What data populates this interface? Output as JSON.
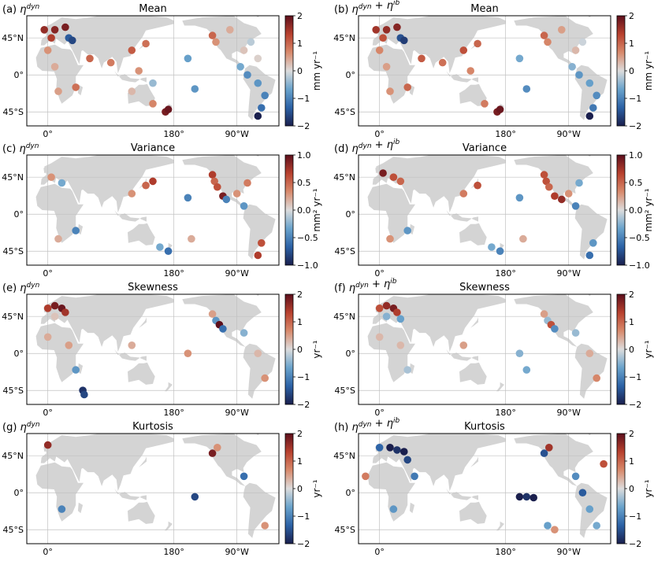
{
  "figure": {
    "lat_ticks": [
      "45°N",
      "0°",
      "45°S"
    ],
    "lon_ticks": [
      "180°",
      "90°W",
      "0°"
    ]
  },
  "colors": {
    "land": "#d4d4d4",
    "grid": "#c0c0c0",
    "colormap": [
      "#1a1f4d",
      "#2c62a6",
      "#6aa3cc",
      "#dcdcdc",
      "#d88a6c",
      "#b8412e",
      "#5c0f1c"
    ]
  },
  "chart_data": [
    {
      "type": "scatter",
      "id": "a",
      "label": "(a)",
      "label_math": "η^dyn",
      "title": "Mean",
      "cbar_label": "mm yr⁻¹",
      "cbar_ticks": [
        "2",
        "1",
        "0",
        "−1",
        "−2"
      ],
      "vmin": -2,
      "vmax": 2,
      "points": [
        {
          "lon": -125,
          "lat": 48,
          "v": 1.0
        },
        {
          "lon": -120,
          "lat": 40,
          "v": 0.6
        },
        {
          "lon": -100,
          "lat": 55,
          "v": 0.4
        },
        {
          "lon": -80,
          "lat": 30,
          "v": 0.2
        },
        {
          "lon": -70,
          "lat": 40,
          "v": -0.2
        },
        {
          "lon": -60,
          "lat": 20,
          "v": 0.1
        },
        {
          "lon": -85,
          "lat": 10,
          "v": -0.6
        },
        {
          "lon": -75,
          "lat": 0,
          "v": -0.9
        },
        {
          "lon": -60,
          "lat": -10,
          "v": -0.8
        },
        {
          "lon": -50,
          "lat": -25,
          "v": -1.0
        },
        {
          "lon": -55,
          "lat": -40,
          "v": -1.2
        },
        {
          "lon": -60,
          "lat": -50,
          "v": -2.0
        },
        {
          "lon": -5,
          "lat": 55,
          "v": 1.6
        },
        {
          "lon": 10,
          "lat": 55,
          "v": 1.7
        },
        {
          "lon": 25,
          "lat": 58,
          "v": 1.8
        },
        {
          "lon": 5,
          "lat": 45,
          "v": 1.4
        },
        {
          "lon": 30,
          "lat": 45,
          "v": -1.4
        },
        {
          "lon": 35,
          "lat": 42,
          "v": -1.6
        },
        {
          "lon": 0,
          "lat": 30,
          "v": 0.6
        },
        {
          "lon": 10,
          "lat": 10,
          "v": 0.4
        },
        {
          "lon": 15,
          "lat": -20,
          "v": 0.5
        },
        {
          "lon": 40,
          "lat": -15,
          "v": 0.9
        },
        {
          "lon": 60,
          "lat": 20,
          "v": 1.0
        },
        {
          "lon": 90,
          "lat": 15,
          "v": 0.8
        },
        {
          "lon": 120,
          "lat": 30,
          "v": 1.1
        },
        {
          "lon": 140,
          "lat": 38,
          "v": 0.9
        },
        {
          "lon": 130,
          "lat": 5,
          "v": 0.6
        },
        {
          "lon": 120,
          "lat": -20,
          "v": 0.3
        },
        {
          "lon": 150,
          "lat": -35,
          "v": 0.7
        },
        {
          "lon": 168,
          "lat": -45,
          "v": 1.8
        },
        {
          "lon": 172,
          "lat": -42,
          "v": 1.9
        },
        {
          "lon": -160,
          "lat": 20,
          "v": -0.7
        },
        {
          "lon": -150,
          "lat": -17,
          "v": -0.8
        },
        {
          "lon": 150,
          "lat": -10,
          "v": -0.4
        }
      ]
    },
    {
      "type": "scatter",
      "id": "b",
      "label": "(b)",
      "label_math": "η^dyn + η^ib",
      "title": "Mean",
      "cbar_label": "mm yr⁻¹",
      "cbar_ticks": [
        "2",
        "1",
        "0",
        "−1",
        "−2"
      ],
      "vmin": -2,
      "vmax": 2,
      "points": [
        {
          "lon": -125,
          "lat": 48,
          "v": 1.0
        },
        {
          "lon": -120,
          "lat": 40,
          "v": 0.7
        },
        {
          "lon": -100,
          "lat": 55,
          "v": 0.5
        },
        {
          "lon": -80,
          "lat": 30,
          "v": 0.3
        },
        {
          "lon": -70,
          "lat": 40,
          "v": -0.1
        },
        {
          "lon": -85,
          "lat": 10,
          "v": -0.5
        },
        {
          "lon": -75,
          "lat": 0,
          "v": -0.8
        },
        {
          "lon": -60,
          "lat": -10,
          "v": -0.7
        },
        {
          "lon": -50,
          "lat": -25,
          "v": -0.9
        },
        {
          "lon": -55,
          "lat": -40,
          "v": -1.1
        },
        {
          "lon": -60,
          "lat": -50,
          "v": -2.0
        },
        {
          "lon": -5,
          "lat": 55,
          "v": 1.5
        },
        {
          "lon": 10,
          "lat": 55,
          "v": 1.6
        },
        {
          "lon": 25,
          "lat": 58,
          "v": 1.7
        },
        {
          "lon": 5,
          "lat": 45,
          "v": 1.2
        },
        {
          "lon": 30,
          "lat": 45,
          "v": -1.5
        },
        {
          "lon": 35,
          "lat": 42,
          "v": -1.7
        },
        {
          "lon": 0,
          "lat": 30,
          "v": 0.7
        },
        {
          "lon": 10,
          "lat": 10,
          "v": 0.5
        },
        {
          "lon": 15,
          "lat": -20,
          "v": 0.6
        },
        {
          "lon": 40,
          "lat": -15,
          "v": 1.0
        },
        {
          "lon": 60,
          "lat": 20,
          "v": 1.1
        },
        {
          "lon": 90,
          "lat": 15,
          "v": 0.9
        },
        {
          "lon": 120,
          "lat": 30,
          "v": 1.2
        },
        {
          "lon": 140,
          "lat": 38,
          "v": 1.0
        },
        {
          "lon": 130,
          "lat": 5,
          "v": 0.7
        },
        {
          "lon": 150,
          "lat": -35,
          "v": 0.8
        },
        {
          "lon": 168,
          "lat": -45,
          "v": 1.8
        },
        {
          "lon": 172,
          "lat": -42,
          "v": 1.9
        },
        {
          "lon": -160,
          "lat": 20,
          "v": -0.6
        },
        {
          "lon": -150,
          "lat": -17,
          "v": -0.9
        }
      ]
    },
    {
      "type": "scatter",
      "id": "c",
      "label": "(c)",
      "label_math": "η^dyn",
      "title": "Variance",
      "cbar_label": "mm² yr⁻¹",
      "cbar_ticks": [
        "1.0",
        "0.5",
        "0.0",
        "−0.5",
        "−1.0"
      ],
      "vmin": -1,
      "vmax": 1,
      "points": [
        {
          "lon": -125,
          "lat": 48,
          "v": 0.7
        },
        {
          "lon": -122,
          "lat": 40,
          "v": 0.5
        },
        {
          "lon": -118,
          "lat": 33,
          "v": 0.6
        },
        {
          "lon": -110,
          "lat": 22,
          "v": 0.9
        },
        {
          "lon": -105,
          "lat": 18,
          "v": -0.5
        },
        {
          "lon": -90,
          "lat": 25,
          "v": 0.3
        },
        {
          "lon": -75,
          "lat": 38,
          "v": 0.4
        },
        {
          "lon": -80,
          "lat": 10,
          "v": -0.4
        },
        {
          "lon": -55,
          "lat": -35,
          "v": 0.6
        },
        {
          "lon": -60,
          "lat": -50,
          "v": 0.7
        },
        {
          "lon": 5,
          "lat": 45,
          "v": 0.3
        },
        {
          "lon": 20,
          "lat": 38,
          "v": -0.3
        },
        {
          "lon": 15,
          "lat": -30,
          "v": 0.2
        },
        {
          "lon": 40,
          "lat": -20,
          "v": -0.5
        },
        {
          "lon": 120,
          "lat": 25,
          "v": 0.3
        },
        {
          "lon": 140,
          "lat": 35,
          "v": 0.5
        },
        {
          "lon": 150,
          "lat": 40,
          "v": 0.7
        },
        {
          "lon": 160,
          "lat": -40,
          "v": -0.3
        },
        {
          "lon": -160,
          "lat": 20,
          "v": -0.5
        },
        {
          "lon": -155,
          "lat": -30,
          "v": 0.2
        },
        {
          "lon": 172,
          "lat": -45,
          "v": -0.6
        }
      ]
    },
    {
      "type": "scatter",
      "id": "d",
      "label": "(d)",
      "label_math": "η^dyn + η^ib",
      "title": "Variance",
      "cbar_label": "mm² yr⁻¹",
      "cbar_ticks": [
        "1.0",
        "0.5",
        "0.0",
        "−0.5",
        "−1.0"
      ],
      "vmin": -1,
      "vmax": 1,
      "points": [
        {
          "lon": -125,
          "lat": 48,
          "v": 0.6
        },
        {
          "lon": -122,
          "lat": 40,
          "v": 0.6
        },
        {
          "lon": -118,
          "lat": 33,
          "v": 0.5
        },
        {
          "lon": -110,
          "lat": 22,
          "v": 0.7
        },
        {
          "lon": -100,
          "lat": 18,
          "v": 0.8
        },
        {
          "lon": -90,
          "lat": 25,
          "v": 0.3
        },
        {
          "lon": -75,
          "lat": 38,
          "v": -0.3
        },
        {
          "lon": -80,
          "lat": 10,
          "v": -0.5
        },
        {
          "lon": -55,
          "lat": -35,
          "v": -0.4
        },
        {
          "lon": -60,
          "lat": -50,
          "v": -0.6
        },
        {
          "lon": 5,
          "lat": 50,
          "v": 0.9
        },
        {
          "lon": 20,
          "lat": 45,
          "v": 0.6
        },
        {
          "lon": 30,
          "lat": 40,
          "v": 0.5
        },
        {
          "lon": 15,
          "lat": -30,
          "v": 0.3
        },
        {
          "lon": 40,
          "lat": -20,
          "v": -0.4
        },
        {
          "lon": 120,
          "lat": 25,
          "v": 0.4
        },
        {
          "lon": 140,
          "lat": 35,
          "v": 0.6
        },
        {
          "lon": 160,
          "lat": -40,
          "v": -0.3
        },
        {
          "lon": -160,
          "lat": 20,
          "v": -0.4
        },
        {
          "lon": -155,
          "lat": -30,
          "v": 0.2
        },
        {
          "lon": 172,
          "lat": -45,
          "v": -0.5
        }
      ]
    },
    {
      "type": "scatter",
      "id": "e",
      "label": "(e)",
      "label_math": "η^dyn",
      "title": "Skewness",
      "cbar_label": "yr⁻¹",
      "cbar_ticks": [
        "2",
        "1",
        "0",
        "−1",
        "−2"
      ],
      "vmin": -2,
      "vmax": 2,
      "points": [
        {
          "lon": -125,
          "lat": 48,
          "v": 0.5
        },
        {
          "lon": -120,
          "lat": 40,
          "v": -0.8
        },
        {
          "lon": -115,
          "lat": 35,
          "v": 2.0
        },
        {
          "lon": -110,
          "lat": 30,
          "v": -1.2
        },
        {
          "lon": -80,
          "lat": 25,
          "v": -0.5
        },
        {
          "lon": -60,
          "lat": 0,
          "v": 0.3
        },
        {
          "lon": -50,
          "lat": -30,
          "v": 0.6
        },
        {
          "lon": 0,
          "lat": 55,
          "v": 1.4
        },
        {
          "lon": 10,
          "lat": 58,
          "v": 1.8
        },
        {
          "lon": 20,
          "lat": 55,
          "v": 1.9
        },
        {
          "lon": 25,
          "lat": 50,
          "v": 1.5
        },
        {
          "lon": 10,
          "lat": 45,
          "v": 0.2
        },
        {
          "lon": 0,
          "lat": 20,
          "v": 0.4
        },
        {
          "lon": 30,
          "lat": 10,
          "v": 0.5
        },
        {
          "lon": 40,
          "lat": -20,
          "v": -0.8
        },
        {
          "lon": 50,
          "lat": -45,
          "v": -1.8
        },
        {
          "lon": 52,
          "lat": -50,
          "v": -1.6
        },
        {
          "lon": 120,
          "lat": 10,
          "v": 0.4
        },
        {
          "lon": -160,
          "lat": 0,
          "v": 0.6
        }
      ]
    },
    {
      "type": "scatter",
      "id": "f",
      "label": "(f)",
      "label_math": "η^dyn + η^ib",
      "title": "Skewness",
      "cbar_label": "yr⁻¹",
      "cbar_ticks": [
        "2",
        "1",
        "0",
        "−1",
        "−2"
      ],
      "vmin": -2,
      "vmax": 2,
      "points": [
        {
          "lon": -125,
          "lat": 48,
          "v": 0.5
        },
        {
          "lon": -120,
          "lat": 40,
          "v": -0.4
        },
        {
          "lon": -115,
          "lat": 35,
          "v": 1.2
        },
        {
          "lon": -110,
          "lat": 30,
          "v": -0.9
        },
        {
          "lon": -80,
          "lat": 25,
          "v": -0.4
        },
        {
          "lon": -60,
          "lat": 0,
          "v": 0.4
        },
        {
          "lon": -50,
          "lat": -30,
          "v": 0.7
        },
        {
          "lon": 0,
          "lat": 55,
          "v": 1.2
        },
        {
          "lon": 10,
          "lat": 58,
          "v": 1.6
        },
        {
          "lon": 20,
          "lat": 55,
          "v": 1.8
        },
        {
          "lon": 25,
          "lat": 50,
          "v": 1.4
        },
        {
          "lon": 10,
          "lat": 45,
          "v": -0.5
        },
        {
          "lon": 30,
          "lat": 42,
          "v": -0.7
        },
        {
          "lon": 0,
          "lat": 20,
          "v": 0.3
        },
        {
          "lon": 30,
          "lat": 10,
          "v": 0.3
        },
        {
          "lon": 40,
          "lat": -20,
          "v": -0.3
        },
        {
          "lon": 120,
          "lat": 10,
          "v": 0.5
        },
        {
          "lon": -160,
          "lat": 0,
          "v": -0.5
        },
        {
          "lon": -150,
          "lat": -20,
          "v": -0.6
        }
      ]
    },
    {
      "type": "scatter",
      "id": "g",
      "label": "(g)",
      "label_math": "η^dyn",
      "title": "Kurtosis",
      "cbar_label": "yr⁻¹",
      "cbar_ticks": [
        "2",
        "1",
        "0",
        "−1",
        "−2"
      ],
      "vmin": -2,
      "vmax": 2,
      "points": [
        {
          "lon": -125,
          "lat": 48,
          "v": 1.8
        },
        {
          "lon": -118,
          "lat": 55,
          "v": 0.6
        },
        {
          "lon": -150,
          "lat": -5,
          "v": -1.6
        },
        {
          "lon": -80,
          "lat": 20,
          "v": -1.2
        },
        {
          "lon": 0,
          "lat": 58,
          "v": 1.6
        },
        {
          "lon": 20,
          "lat": -20,
          "v": -1.0
        },
        {
          "lon": -50,
          "lat": -40,
          "v": 0.6
        }
      ]
    },
    {
      "type": "scatter",
      "id": "h",
      "label": "(h)",
      "label_math": "η^dyn + η^ib",
      "title": "Kurtosis",
      "cbar_label": "yr⁻¹",
      "cbar_ticks": [
        "2",
        "1",
        "0",
        "−1",
        "−2"
      ],
      "vmin": -2,
      "vmax": 2,
      "points": [
        {
          "lon": -125,
          "lat": 48,
          "v": -1.5
        },
        {
          "lon": -118,
          "lat": 55,
          "v": 1.5
        },
        {
          "lon": -160,
          "lat": -5,
          "v": -2.0
        },
        {
          "lon": -150,
          "lat": -5,
          "v": -1.8
        },
        {
          "lon": -140,
          "lat": -6,
          "v": -2.0
        },
        {
          "lon": -120,
          "lat": -40,
          "v": -0.7
        },
        {
          "lon": -110,
          "lat": -45,
          "v": 0.6
        },
        {
          "lon": -80,
          "lat": 20,
          "v": -0.9
        },
        {
          "lon": -70,
          "lat": 0,
          "v": -1.4
        },
        {
          "lon": -60,
          "lat": -20,
          "v": -0.7
        },
        {
          "lon": -50,
          "lat": -40,
          "v": -0.6
        },
        {
          "lon": 0,
          "lat": 55,
          "v": -1.3
        },
        {
          "lon": 15,
          "lat": 55,
          "v": -2.0
        },
        {
          "lon": 25,
          "lat": 52,
          "v": -1.8
        },
        {
          "lon": 35,
          "lat": 50,
          "v": -2.0
        },
        {
          "lon": 40,
          "lat": 40,
          "v": -1.6
        },
        {
          "lon": 50,
          "lat": 20,
          "v": -1.1
        },
        {
          "lon": 20,
          "lat": -20,
          "v": -0.8
        },
        {
          "lon": -40,
          "lat": 35,
          "v": 1.2
        },
        {
          "lon": -20,
          "lat": 20,
          "v": 0.8
        }
      ]
    }
  ]
}
